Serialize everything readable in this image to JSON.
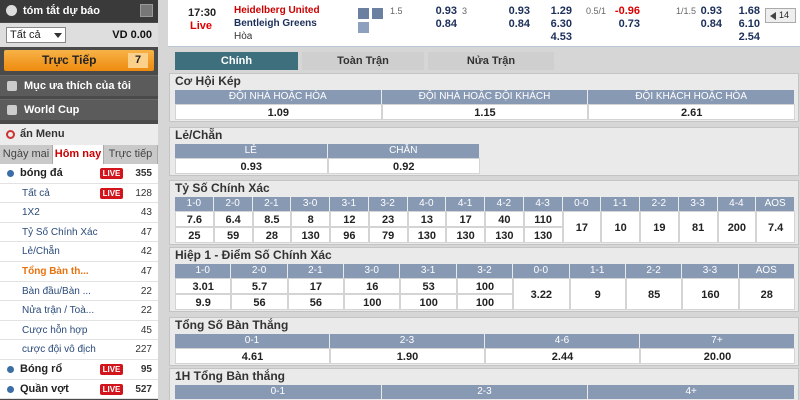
{
  "sidebar": {
    "title": "tóm tắt dự báo",
    "filter": "Tất cả",
    "balance": "VD 0.00",
    "live_button": {
      "label": "Trực Tiếp",
      "count": "7"
    },
    "links": [
      "Mục ưa thích của tôi",
      "World Cup"
    ],
    "menu_title": "ẩn Menu",
    "tabs": [
      "Ngày mai",
      "Hôm nay",
      "Trực tiếp"
    ],
    "items": [
      {
        "label": "bóng đá",
        "live": "LIVE",
        "count": "355"
      },
      {
        "label": "Tất cả",
        "live": "LIVE",
        "count": "128"
      },
      {
        "label": "1X2",
        "count": "43"
      },
      {
        "label": "Tỷ Số Chính Xác",
        "count": "47"
      },
      {
        "label": "Lẻ/Chẵn",
        "count": "42"
      },
      {
        "label": "Tổng Bàn th...",
        "count": "47"
      },
      {
        "label": "Bàn đầu/Bàn ...",
        "count": "22"
      },
      {
        "label": "Nửa trận / Toà...",
        "count": "22"
      },
      {
        "label": "Cược hỗn hợp",
        "count": "45"
      },
      {
        "label": "cược đội vô địch",
        "count": "227"
      },
      {
        "label": "Bóng rổ",
        "live": "LIVE",
        "count": "95"
      },
      {
        "label": "Quần vợt",
        "live": "LIVE",
        "count": "527"
      }
    ]
  },
  "match": {
    "time": "17:30",
    "status": "Live",
    "home": "Heidelberg United",
    "away": "Bentleigh Greens",
    "draw": "Hòa",
    "odds": [
      [
        "1.5",
        "0.93",
        "3",
        "0.93",
        "1.29",
        "0.5/1",
        "-0.96",
        "1/1.5",
        "0.93",
        "1.68"
      ],
      [
        null,
        "0.84",
        null,
        "0.84",
        "6.30",
        null,
        "0.73",
        null,
        "0.84",
        "6.10"
      ],
      [
        null,
        null,
        null,
        null,
        "4.53",
        null,
        null,
        null,
        null,
        "2.54"
      ]
    ],
    "more": "14"
  },
  "tabs": [
    "Chính",
    "Toàn Trận",
    "Nửa Trận"
  ],
  "markets": [
    {
      "title": "Cơ Hội Kép",
      "headers": [
        "ĐỘI NHÀ HOẶC HÒA",
        "ĐỘI NHÀ HOẶC ĐỘI KHÁCH",
        "ĐỘI KHÁCH HOẶC HÒA"
      ],
      "rows": [
        [
          "1.09",
          "1.15",
          "2.61"
        ]
      ]
    },
    {
      "title": "Lẻ/Chẵn",
      "headers": [
        "LẺ",
        "CHẴN"
      ],
      "rows": [
        [
          "0.93",
          "0.92"
        ]
      ]
    },
    {
      "title": "Tỷ Số Chính Xác",
      "headers": [
        "1-0",
        "2-0",
        "2-1",
        "3-0",
        "3-1",
        "3-2",
        "4-0",
        "4-1",
        "4-2",
        "4-3",
        "0-0",
        "1-1",
        "2-2",
        "3-3",
        "4-4",
        "AOS"
      ],
      "rows": [
        [
          "7.6",
          "6.4",
          "8.5",
          "8",
          "12",
          "23",
          "13",
          "17",
          "40",
          "110"
        ],
        [
          "25",
          "59",
          "28",
          "130",
          "96",
          "79",
          "130",
          "130",
          "130",
          "130"
        ]
      ],
      "draws": [
        "17",
        "10",
        "19",
        "81",
        "200",
        "7.4"
      ]
    },
    {
      "title": "Hiệp 1 - Điểm Số Chính Xác",
      "headers": [
        "1-0",
        "2-0",
        "2-1",
        "3-0",
        "3-1",
        "3-2",
        "0-0",
        "1-1",
        "2-2",
        "3-3",
        "AOS"
      ],
      "rows": [
        [
          "3.01",
          "5.7",
          "17",
          "16",
          "53",
          "100"
        ],
        [
          "9.9",
          "56",
          "56",
          "100",
          "100",
          "100"
        ]
      ],
      "draws": [
        "3.22",
        "9",
        "85",
        "160",
        "28"
      ]
    },
    {
      "title": "Tổng Số Bàn Thắng",
      "headers": [
        "0-1",
        "2-3",
        "4-6",
        "7+"
      ],
      "rows": [
        [
          "4.61",
          "1.90",
          "2.44",
          "20.00"
        ]
      ]
    },
    {
      "title": "1H Tổng Bàn thắng",
      "headers": [
        "0-1",
        "2-3",
        "4+"
      ]
    }
  ]
}
